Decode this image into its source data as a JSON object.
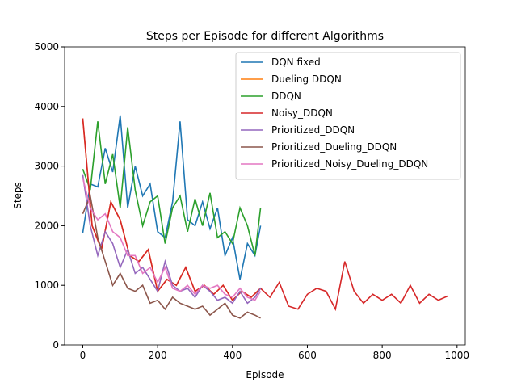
{
  "chart_data": {
    "type": "line",
    "title": "Steps per Episode for different Algorithms",
    "x_label": "Episode",
    "y_label": "Steps",
    "xlim": [
      -48.5,
      1022
    ],
    "ylim": [
      0,
      5000
    ],
    "xticks": [
      0,
      200,
      400,
      600,
      800,
      1000
    ],
    "yticks": [
      0,
      1000,
      2000,
      3000,
      4000,
      5000
    ],
    "legend": "upper right",
    "series": [
      {
        "name": "DQN fixed",
        "color": "#1f77b4",
        "x": [
          0,
          20,
          40,
          60,
          80,
          100,
          120,
          140,
          160,
          180,
          200,
          220,
          240,
          260,
          280,
          300,
          320,
          340,
          360,
          380,
          400,
          420,
          440,
          460,
          475
        ],
        "values": [
          1880,
          2700,
          2650,
          3300,
          2900,
          3850,
          2300,
          3000,
          2500,
          2700,
          1900,
          1800,
          2400,
          3750,
          2100,
          2000,
          2400,
          1950,
          2300,
          1500,
          1800,
          1100,
          1700,
          1500,
          2000
        ]
      },
      {
        "name": "Dueling DDQN",
        "color": "#ff7f0e",
        "x": [
          0,
          25,
          50,
          75,
          100,
          125,
          150,
          175,
          200,
          225,
          250,
          275,
          300,
          325,
          350,
          375,
          400,
          425,
          450,
          475
        ],
        "values": [
          3800,
          2000,
          1600,
          2400,
          2100,
          1500,
          1400,
          1600,
          900,
          1100,
          1000,
          1300,
          900,
          1000,
          850,
          1000,
          750,
          900,
          800,
          950
        ]
      },
      {
        "name": "DDQN",
        "color": "#2ca02c",
        "x": [
          0,
          20,
          40,
          60,
          80,
          100,
          120,
          140,
          160,
          180,
          200,
          220,
          240,
          260,
          280,
          300,
          320,
          340,
          360,
          380,
          400,
          420,
          440,
          460,
          475
        ],
        "values": [
          2950,
          2600,
          3750,
          2700,
          3200,
          2300,
          3650,
          2600,
          2000,
          2400,
          2500,
          1700,
          2300,
          2500,
          1900,
          2450,
          2000,
          2550,
          1800,
          1900,
          1700,
          2300,
          2000,
          1500,
          2300
        ]
      },
      {
        "name": "Noisy_DDQN",
        "color": "#d62728",
        "x": [
          0,
          25,
          50,
          75,
          100,
          125,
          150,
          175,
          200,
          225,
          250,
          275,
          300,
          325,
          350,
          375,
          400,
          425,
          450,
          475,
          500,
          525,
          550,
          575,
          600,
          625,
          650,
          675,
          700,
          725,
          750,
          775,
          800,
          825,
          850,
          875,
          900,
          925,
          950,
          975
        ],
        "values": [
          3800,
          2000,
          1600,
          2400,
          2100,
          1500,
          1400,
          1600,
          900,
          1100,
          1000,
          1300,
          900,
          1000,
          850,
          1000,
          750,
          900,
          800,
          950,
          800,
          1050,
          650,
          600,
          850,
          950,
          900,
          600,
          1400,
          900,
          700,
          850,
          750,
          850,
          700,
          1000,
          700,
          850,
          750,
          820
        ]
      },
      {
        "name": "Prioritized_DDQN",
        "color": "#9467bd",
        "x": [
          0,
          20,
          40,
          60,
          80,
          100,
          120,
          140,
          160,
          180,
          200,
          220,
          240,
          260,
          280,
          300,
          320,
          340,
          360,
          380,
          400,
          420,
          440,
          460,
          475
        ],
        "values": [
          2850,
          2000,
          1500,
          1900,
          1700,
          1300,
          1600,
          1200,
          1300,
          1100,
          900,
          1400,
          1000,
          900,
          950,
          800,
          1000,
          900,
          750,
          800,
          700,
          900,
          700,
          800,
          950
        ]
      },
      {
        "name": "Prioritized_Dueling_DDQN",
        "color": "#8c564b",
        "x": [
          0,
          20,
          40,
          60,
          80,
          100,
          120,
          140,
          160,
          180,
          200,
          220,
          240,
          260,
          280,
          300,
          320,
          340,
          360,
          380,
          400,
          420,
          440,
          460,
          475
        ],
        "values": [
          2200,
          2500,
          1800,
          1400,
          1000,
          1200,
          950,
          900,
          1000,
          700,
          750,
          600,
          800,
          700,
          650,
          600,
          650,
          500,
          600,
          700,
          500,
          450,
          550,
          500,
          450
        ]
      },
      {
        "name": "Prioritized_Noisy_Dueling_DDQN",
        "color": "#e377c2",
        "x": [
          0,
          20,
          40,
          60,
          80,
          100,
          120,
          140,
          160,
          180,
          200,
          220,
          240,
          260,
          280,
          300,
          320,
          340,
          360,
          380,
          400,
          420,
          440,
          460,
          475
        ],
        "values": [
          2800,
          2300,
          2100,
          2200,
          1900,
          1800,
          1500,
          1500,
          1200,
          1300,
          1050,
          1300,
          950,
          900,
          1000,
          850,
          1000,
          950,
          1000,
          850,
          800,
          950,
          800,
          750,
          900
        ]
      }
    ]
  }
}
